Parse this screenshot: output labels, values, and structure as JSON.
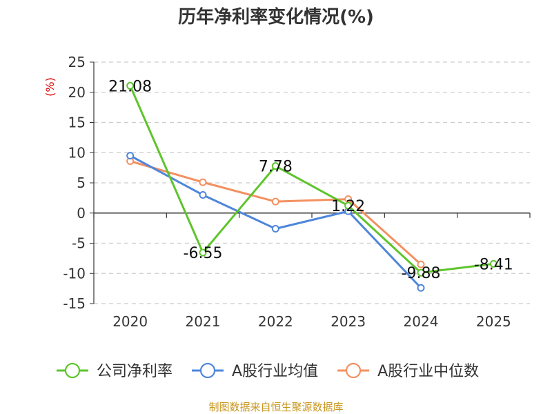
{
  "title": "历年净利率变化情况(%)",
  "unit_label": "(%)",
  "source": "制图数据来自恒生聚源数据库",
  "chart_data": {
    "type": "line",
    "categories": [
      "2020",
      "2021",
      "2022",
      "2023",
      "2024",
      "2025"
    ],
    "ylim": [
      -15,
      25
    ],
    "yticks": [
      25,
      20,
      15,
      10,
      5,
      0,
      -5,
      -10,
      -15
    ],
    "grid": true,
    "legend_position": "bottom",
    "series": [
      {
        "name": "公司净利率",
        "color": "#5ec42c",
        "values": [
          21.08,
          -6.55,
          7.78,
          1.22,
          -9.88,
          -8.41
        ],
        "labels": [
          "21.08",
          "-6.55",
          "7.78",
          "1.22",
          "-9.88",
          "-8.41"
        ]
      },
      {
        "name": "A股行业均值",
        "color": "#4f86db",
        "values": [
          9.5,
          3.0,
          -2.6,
          0.3,
          -12.4,
          null
        ]
      },
      {
        "name": "A股行业中位数",
        "color": "#f39060",
        "values": [
          8.6,
          5.1,
          1.9,
          2.3,
          -8.5,
          null
        ]
      }
    ]
  }
}
